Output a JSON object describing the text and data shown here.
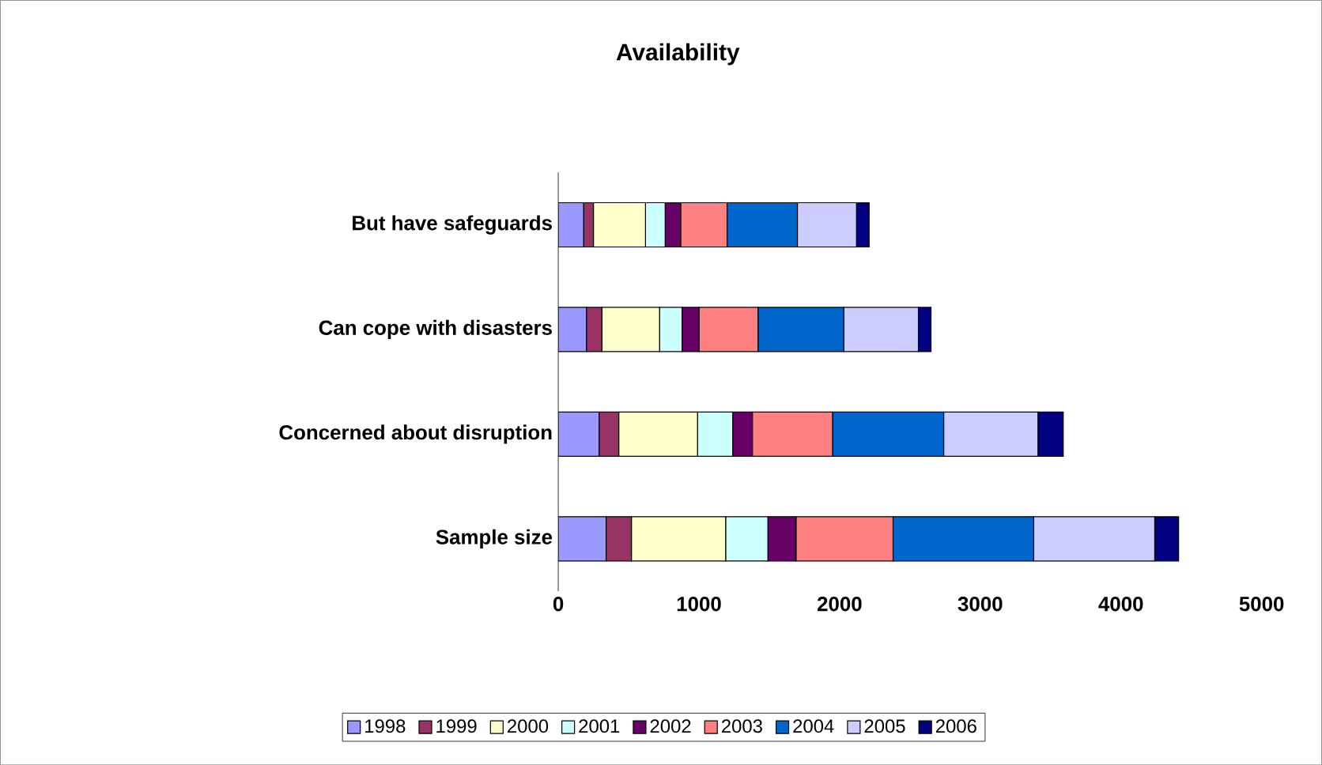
{
  "chart_data": {
    "type": "bar",
    "orientation": "horizontal",
    "stacked": true,
    "title": "Availability",
    "categories": [
      "But have safeguards",
      "Can cope with disasters",
      "Concerned about disruption",
      "Sample size"
    ],
    "series": [
      {
        "name": "1998",
        "color": "#9999ff",
        "values": [
          180,
          200,
          290,
          340
        ]
      },
      {
        "name": "1999",
        "color": "#993366",
        "values": [
          70,
          110,
          140,
          180
        ]
      },
      {
        "name": "2000",
        "color": "#ffffcc",
        "values": [
          370,
          410,
          560,
          670
        ]
      },
      {
        "name": "2001",
        "color": "#ccffff",
        "values": [
          140,
          160,
          250,
          300
        ]
      },
      {
        "name": "2002",
        "color": "#660066",
        "values": [
          110,
          120,
          140,
          200
        ]
      },
      {
        "name": "2003",
        "color": "#ff8080",
        "values": [
          330,
          420,
          570,
          690
        ]
      },
      {
        "name": "2004",
        "color": "#0066cc",
        "values": [
          500,
          610,
          790,
          1000
        ]
      },
      {
        "name": "2005",
        "color": "#ccccff",
        "values": [
          420,
          530,
          670,
          860
        ]
      },
      {
        "name": "2006",
        "color": "#000080",
        "values": [
          90,
          90,
          180,
          170
        ]
      }
    ],
    "xlim": [
      0,
      5000
    ],
    "xticks": [
      0,
      1000,
      2000,
      3000,
      4000,
      5000
    ],
    "grid": false,
    "legend": "bottom"
  }
}
